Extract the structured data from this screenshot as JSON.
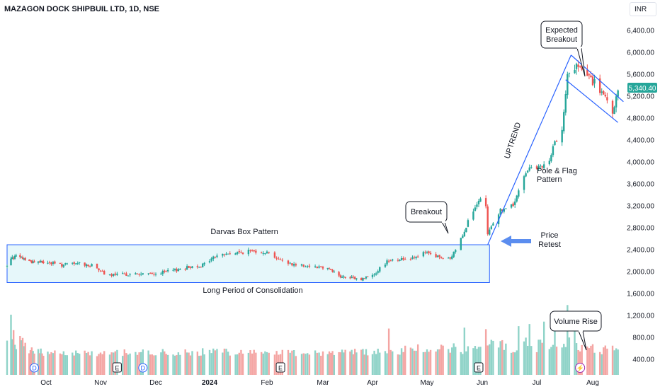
{
  "header": {
    "title": "MAZAGON DOCK SHIPBUIL LTD, 1D, NSE",
    "currency": "INR"
  },
  "price_label": "5,340.40",
  "colors": {
    "up": "#26a69a",
    "down": "#ef5350",
    "vol_up": "#8fd3c8",
    "vol_down": "#f4a5a3",
    "box_fill": "#e6f7fa",
    "line_blue": "#2962ff",
    "arrow_blue": "#5b8def"
  },
  "annotations": {
    "darvas": "Darvas Box Pattern",
    "consolidation": "Long Period of Consolidation",
    "breakout": "Breakout",
    "uptrend": "UPTREND",
    "pole_flag_1": "Pole & Flag",
    "pole_flag_2": "Pattern",
    "retest_1": "Price",
    "retest_2": "Retest",
    "expected_1": "Expected",
    "expected_2": "Breakout",
    "volume_rise": "Volume Rise"
  },
  "event_markers": [
    {
      "label": "D",
      "style": "dividend",
      "date": "2023-09-22"
    },
    {
      "label": "E",
      "style": "earnings",
      "date": "2023-11-10"
    },
    {
      "label": "D",
      "style": "dividend",
      "date": "2023-11-24"
    },
    {
      "label": "E",
      "style": "earnings",
      "date": "2024-02-08"
    },
    {
      "label": "E",
      "style": "earnings",
      "date": "2024-05-30"
    },
    {
      "label": "⚡",
      "style": "split",
      "date": "2024-07-25"
    }
  ],
  "chart_data": {
    "type": "candlestick",
    "title": "MAZAGON DOCK SHIPBUIL LTD, 1D, NSE",
    "x_tick_labels": [
      "Oct",
      "Nov",
      "Dec",
      "2024",
      "Feb",
      "Mar",
      "Apr",
      "May",
      "Jun",
      "Jul",
      "Aug"
    ],
    "x_tick_dates": [
      "2023-10-01",
      "2023-11-01",
      "2023-12-01",
      "2024-01-01",
      "2024-02-01",
      "2024-03-01",
      "2024-04-01",
      "2024-05-01",
      "2024-06-01",
      "2024-07-01",
      "2024-08-01"
    ],
    "price_ticks": [
      "6,400.00",
      "6,000.00",
      "5,600.00",
      "5,200.00",
      "4,800.00",
      "4,400.00",
      "4,000.00",
      "3,600.00",
      "3,200.00",
      "2,800.00",
      "2,400.00",
      "2,000.00",
      "1,600.00",
      "1,200.00",
      "800.00",
      "400.00"
    ],
    "y_range": [
      400,
      6400
    ],
    "last_price": 5340.4,
    "darvas_box": {
      "start": "2023-09-01",
      "end": "2024-06-05",
      "high": 2490,
      "low": 1800
    },
    "price_path": [
      [
        "2023-09-01",
        2100
      ],
      [
        "2023-09-05",
        2280
      ],
      [
        "2023-09-12",
        2250
      ],
      [
        "2023-09-20",
        2180
      ],
      [
        "2023-10-01",
        2170
      ],
      [
        "2023-10-10",
        2120
      ],
      [
        "2023-10-20",
        2150
      ],
      [
        "2023-10-27",
        2110
      ],
      [
        "2023-11-01",
        2030
      ],
      [
        "2023-11-03",
        1930
      ],
      [
        "2023-11-15",
        1950
      ],
      [
        "2023-11-30",
        1960
      ],
      [
        "2023-12-08",
        2000
      ],
      [
        "2023-12-20",
        2080
      ],
      [
        "2023-12-28",
        2120
      ],
      [
        "2024-01-05",
        2300
      ],
      [
        "2024-01-15",
        2340
      ],
      [
        "2024-01-25",
        2380
      ],
      [
        "2024-02-02",
        2350
      ],
      [
        "2024-02-08",
        2200
      ],
      [
        "2024-02-15",
        2130
      ],
      [
        "2024-02-25",
        2100
      ],
      [
        "2024-03-05",
        2060
      ],
      [
        "2024-03-12",
        1900
      ],
      [
        "2024-03-25",
        1860
      ],
      [
        "2024-04-02",
        1960
      ],
      [
        "2024-04-10",
        2220
      ],
      [
        "2024-04-20",
        2230
      ],
      [
        "2024-04-30",
        2340
      ],
      [
        "2024-05-08",
        2260
      ],
      [
        "2024-05-14",
        2220
      ],
      [
        "2024-05-20",
        2600
      ],
      [
        "2024-05-24",
        2920
      ],
      [
        "2024-05-28",
        3150
      ],
      [
        "2024-05-31",
        3300
      ],
      [
        "2024-06-03",
        3150
      ],
      [
        "2024-06-04",
        2680
      ],
      [
        "2024-06-07",
        2900
      ],
      [
        "2024-06-11",
        3120
      ],
      [
        "2024-06-18",
        3200
      ],
      [
        "2024-06-22",
        3550
      ],
      [
        "2024-06-27",
        3950
      ],
      [
        "2024-07-03",
        3880
      ],
      [
        "2024-07-08",
        4000
      ],
      [
        "2024-07-11",
        4350
      ],
      [
        "2024-07-15",
        4650
      ],
      [
        "2024-07-18",
        5550
      ],
      [
        "2024-07-23",
        5750
      ],
      [
        "2024-07-27",
        5650
      ],
      [
        "2024-08-03",
        5400
      ],
      [
        "2024-08-08",
        5150
      ],
      [
        "2024-08-11",
        4880
      ],
      [
        "2024-08-13",
        4930
      ],
      [
        "2024-08-15",
        5340
      ]
    ],
    "volume_path": [
      [
        "2023-09-01",
        1000
      ],
      [
        "2023-09-05",
        1450
      ],
      [
        "2023-09-20",
        550
      ],
      [
        "2023-10-01",
        450
      ],
      [
        "2023-11-01",
        420
      ],
      [
        "2023-12-01",
        430
      ],
      [
        "2024-01-15",
        480
      ],
      [
        "2024-03-01",
        420
      ],
      [
        "2024-04-01",
        470
      ],
      [
        "2024-05-01",
        650
      ],
      [
        "2024-05-24",
        700
      ],
      [
        "2024-06-04",
        800
      ],
      [
        "2024-06-25",
        900
      ],
      [
        "2024-07-18",
        1000
      ],
      [
        "2024-07-23",
        1050
      ],
      [
        "2024-08-03",
        600
      ],
      [
        "2024-08-15",
        600
      ]
    ],
    "volume_spikes": [
      [
        "2023-09-04",
        1480
      ],
      [
        "2023-09-10",
        950
      ],
      [
        "2024-04-10",
        1020
      ],
      [
        "2024-05-22",
        1050
      ],
      [
        "2024-06-03",
        1000
      ],
      [
        "2024-06-21",
        1100
      ],
      [
        "2024-06-27",
        1170
      ],
      [
        "2024-07-05",
        1250
      ],
      [
        "2024-07-11",
        960
      ],
      [
        "2024-07-18",
        1800
      ],
      [
        "2024-07-22",
        1120
      ]
    ]
  }
}
